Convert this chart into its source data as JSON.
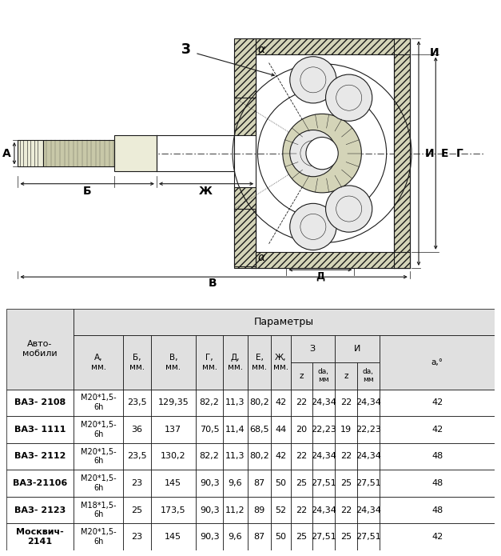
{
  "cars": [
    "ВАЗ- 2108",
    "ВАЗ- 1111",
    "ВАЗ- 2112",
    "ВАЗ-21106",
    "ВАЗ- 2123",
    "Москвич-\n2141"
  ],
  "col_A": [
    "М20*1,5-\n6h",
    "М20*1,5-\n6h",
    "М20*1,5-\n6h",
    "М20*1,5-\n6h",
    "М18*1,5-\n6h",
    "М20*1,5-\n6h"
  ],
  "col_B": [
    "23,5",
    "36",
    "23,5",
    "23",
    "25",
    "23"
  ],
  "col_V": [
    "129,35",
    "137",
    "130,2",
    "145",
    "173,5",
    "145"
  ],
  "col_G": [
    "82,2",
    "70,5",
    "82,2",
    "90,3",
    "90,3",
    "90,3"
  ],
  "col_D": [
    "11,3",
    "11,4",
    "11,3",
    "9,6",
    "11,2",
    "9,6"
  ],
  "col_E": [
    "80,2",
    "68,5",
    "80,2",
    "87",
    "89",
    "87"
  ],
  "col_Zh": [
    "42",
    "44",
    "42",
    "50",
    "52",
    "50"
  ],
  "col_z3": [
    "22",
    "20",
    "22",
    "25",
    "22",
    "25"
  ],
  "col_da3": [
    "24,34",
    "22,23",
    "24,34",
    "27,51",
    "24,34",
    "27,51"
  ],
  "col_z4": [
    "22",
    "19",
    "22",
    "25",
    "22",
    "25"
  ],
  "col_da4": [
    "24,34",
    "22,23",
    "24,34",
    "27,51",
    "24,34",
    "27,51"
  ],
  "col_a": [
    "42",
    "42",
    "48",
    "48",
    "48",
    "42"
  ],
  "hdr_bg": "#e0e0e0",
  "white": "#ffffff"
}
